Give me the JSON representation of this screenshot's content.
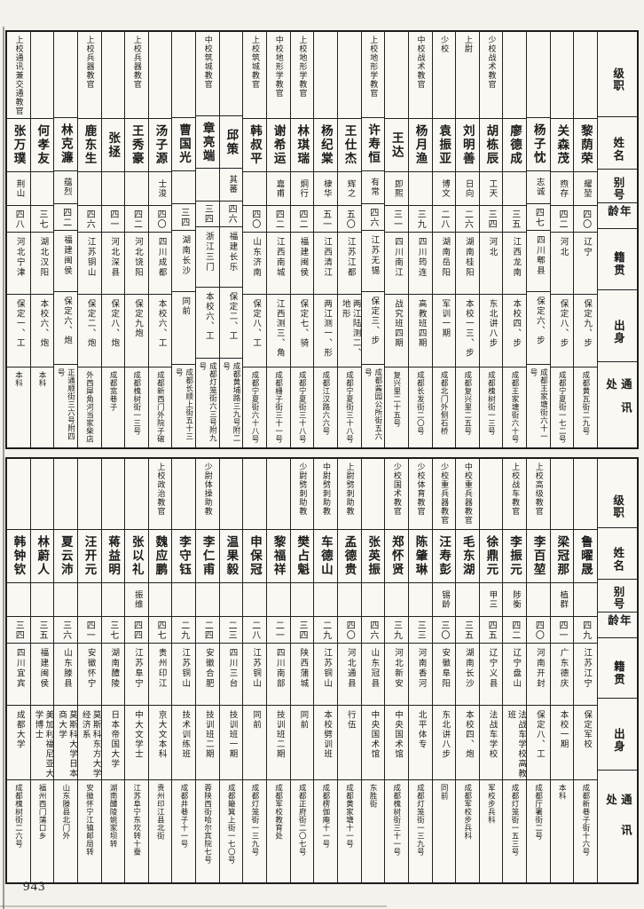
{
  "page_number": "943",
  "header_labels": {
    "rank": "级职",
    "name": "姓名",
    "alias": "别号",
    "age": "年龄",
    "native": "籍贯",
    "origin": "出身",
    "address": "通讯处"
  },
  "tables": [
    {
      "people": [
        {
          "rank": "",
          "name": "黎荫荣",
          "alias": "耀堃",
          "age": "四〇",
          "native": "辽宁",
          "origin": "保定九、步",
          "address": "成都黄瓦街二九号"
        },
        {
          "rank": "",
          "name": "关森茂",
          "alias": "煦存",
          "age": "四二",
          "native": "河北",
          "origin": "保定八、步",
          "address": "成都宁夏街一七二号"
        },
        {
          "rank": "",
          "name": "杨子忱",
          "alias": "志诚",
          "age": "四七",
          "native": "四川郫县",
          "origin": "保定六、步",
          "address": "成都王家塘街六十一号"
        },
        {
          "rank": "",
          "name": "廖德成",
          "alias": "",
          "age": "三五",
          "native": "江西龙南",
          "origin": "本校四、步",
          "address": "成都王家塘街六十号"
        },
        {
          "rank": "少校战术教官",
          "name": "胡栋辰",
          "alias": "工天",
          "age": "三四",
          "native": "河北",
          "origin": "东北讲八步",
          "address": "成都槐树街一三号"
        },
        {
          "rank": "上尉",
          "name": "刘明善",
          "alias": "日向",
          "age": "二六",
          "native": "湖南桂阳",
          "origin": "本校一三、步",
          "address": "成都复兴里二五号"
        },
        {
          "rank": "少校",
          "name": "袁振亚",
          "alias": "博文",
          "age": "二八",
          "native": "湖南岳阳",
          "origin": "军训一期",
          "address": "成都北门外侧石桥"
        },
        {
          "rank": "中校战术教官",
          "name": "杨月渔",
          "alias": "",
          "age": "三九",
          "native": "四川筠连",
          "origin": "高教班四期",
          "address": "成都长发街二〇号"
        },
        {
          "rank": "",
          "name": "王达",
          "alias": "即熙",
          "age": "三一",
          "native": "四川南江",
          "origin": "战究班四期",
          "address": "复兴里二十五号"
        },
        {
          "rank": "上校地形学教官",
          "name": "许寿恒",
          "alias": "有常",
          "age": "四六",
          "native": "江苏无锡",
          "origin": "保定三、步",
          "address": "成都酱园公所街五六号"
        },
        {
          "rank": "",
          "name": "王仕杰",
          "alias": "辉之",
          "age": "五〇",
          "native": "江苏江都",
          "origin": "两江陆测二、地形",
          "address": "成都宁夏街三十八号"
        },
        {
          "rank": "",
          "name": "杨纪棠",
          "alias": "棣华",
          "age": "五一",
          "native": "江西清江",
          "origin": "两江测一、形",
          "address": "成都江汉路六六号"
        },
        {
          "rank": "上校地形学教官",
          "name": "林琪瑞",
          "alias": "炯行",
          "age": "四二",
          "native": "福建闽侯",
          "origin": "保定七、骑",
          "address": "成都宁夏街三十八号"
        },
        {
          "rank": "中校地形学教官",
          "name": "谢希运",
          "alias": "嘉甫",
          "age": "四二",
          "native": "江西南城",
          "origin": "江西测三、角",
          "address": "成都栅子街三十一号"
        },
        {
          "rank": "上校筑城教官",
          "name": "韩叔平",
          "alias": "",
          "age": "四〇",
          "native": "山东济南",
          "origin": "保定八、工",
          "address": "成都宁夏街六十八号"
        },
        {
          "rank": "",
          "name": "邱策",
          "alias": "其蕃",
          "age": "四六",
          "native": "福建长乐",
          "origin": "保定二、工",
          "address": "成都黄埔路三九号附二号"
        },
        {
          "rank": "中校筑城教官",
          "name": "章亮端",
          "alias": "",
          "age": "三四",
          "native": "浙江三门",
          "origin": "本校六、工",
          "address": "成都灯笼街六三号附九号"
        },
        {
          "rank": "",
          "name": "曹国光",
          "alias": "",
          "age": "三四",
          "native": "湖南长沙",
          "origin": "同前",
          "address": "成都长顺上街五十三号"
        },
        {
          "rank": "",
          "name": "汤子源",
          "alias": "士浚",
          "age": "四〇",
          "native": "四川成都",
          "origin": "本校六、工",
          "address": "成都新西门外院子磙"
        },
        {
          "rank": "上校兵器教官",
          "name": "王秀豪",
          "alias": "",
          "age": "四二",
          "native": "河北饶阳",
          "origin": "保定九炮",
          "address": "成都槐树街一三号"
        },
        {
          "rank": "",
          "name": "张拯",
          "alias": "",
          "age": "四一",
          "native": "河北深县",
          "origin": "保定八、炮",
          "address": "成都宽巷子"
        },
        {
          "rank": "上校兵器教官",
          "name": "鹿东生",
          "alias": "",
          "age": "四六",
          "native": "江苏铜山",
          "origin": "保定二、炮",
          "address": "外西犀角河当家柴店"
        },
        {
          "rank": "",
          "name": "林克濂",
          "alias": "蕴烈",
          "age": "四二",
          "native": "福建闽侯",
          "origin": "保定六、炮",
          "address": "正通顺街三六号附四号"
        },
        {
          "rank": "",
          "name": "何孝友",
          "alias": "",
          "age": "三七",
          "native": "湖北汉阳",
          "origin": "本校六、炮",
          "address": "本科"
        },
        {
          "rank": "上校通讯兼交通教官",
          "name": "张万璞",
          "alias": "荆山",
          "age": "四八",
          "native": "河北宁津",
          "origin": "保定一、工",
          "address": "本科"
        }
      ]
    },
    {
      "people": [
        {
          "rank": "",
          "name": "鲁曜晟",
          "alias": "",
          "age": "四九",
          "native": "江苏江宁",
          "origin": "保定军校",
          "address": "成都新巷子街十六号"
        },
        {
          "rank": "",
          "name": "梁冠那",
          "alias": "植群",
          "age": "四一",
          "native": "广东德庆",
          "origin": "本校一期",
          "address": "本科"
        },
        {
          "rank": "上校高级教官",
          "name": "李百堃",
          "alias": "",
          "age": "四〇",
          "native": "河南开封",
          "origin": "保定八、工",
          "address": "成都厅署街二号"
        },
        {
          "rank": "上校战车教官",
          "name": "李振元",
          "alias": "陟衡",
          "age": "四二",
          "native": "辽宁盘山",
          "origin": "法战车学校高教班",
          "address": "成都灯笼街一五三号"
        },
        {
          "rank": "",
          "name": "徐鼎元",
          "alias": "甲三",
          "age": "四五",
          "native": "辽宁义县",
          "origin": "法战车学校",
          "address": "军校步兵科"
        },
        {
          "rank": "中校重兵器教官",
          "name": "毛东湖",
          "alias": "",
          "age": "三五",
          "native": "湖南长沙",
          "origin": "本校四、炮",
          "address": "成都军校步兵科"
        },
        {
          "rank": "少校重兵器教官",
          "name": "汪寿彭",
          "alias": "锡龄",
          "age": "三〇",
          "native": "安徽阜阳",
          "origin": "东北讲八步",
          "address": "同前"
        },
        {
          "rank": "少校体育教官",
          "name": "陈肇琳",
          "alias": "",
          "age": "三三",
          "native": "河南香河",
          "origin": "北平体专",
          "address": "成都灯笼街一三九号"
        },
        {
          "rank": "少校国术教官",
          "name": "郑怀贤",
          "alias": "",
          "age": "三九",
          "native": "河北新安",
          "origin": "中央国术馆",
          "address": "成都槐树街三十一号"
        },
        {
          "rank": "",
          "name": "张英振",
          "alias": "",
          "age": "四六",
          "native": "山东冠县",
          "origin": "中央国术馆",
          "address": "东胜街"
        },
        {
          "rank": "上尉劈刺助教",
          "name": "孟德贵",
          "alias": "",
          "age": "四〇",
          "native": "河北通县",
          "origin": "行伍",
          "address": "成都黄家塘十一号"
        },
        {
          "rank": "中尉劈刺助教",
          "name": "车德山",
          "alias": "",
          "age": "二九",
          "native": "江苏铜山",
          "origin": "本校劈训班",
          "address": "成都楞伽庵十一号"
        },
        {
          "rank": "少尉劈刺助教",
          "name": "樊占魁",
          "alias": "",
          "age": "三四",
          "native": "陕西蒲城",
          "origin": "同前",
          "address": "成都正府街二〇七号"
        },
        {
          "rank": "",
          "name": "黎福祥",
          "alias": "",
          "age": "二一",
          "native": "四川南部",
          "origin": "技训班二期",
          "address": "成都军校教育处"
        },
        {
          "rank": "",
          "name": "申保冠",
          "alias": "",
          "age": "二八",
          "native": "江苏铜山",
          "origin": "同前",
          "address": "成都灯笼街一三九号"
        },
        {
          "rank": "",
          "name": "温果毅",
          "alias": "",
          "age": "二三",
          "native": "四川三台",
          "origin": "技训班一期",
          "address": "成都簸箕上街一七〇号"
        },
        {
          "rank": "少尉体操助教",
          "name": "李仁甫",
          "alias": "",
          "age": "二四",
          "native": "安徽合肥",
          "origin": "技训班二期",
          "address": "蓉陕西街哈尔宾院七号"
        },
        {
          "rank": "",
          "name": "李守钰",
          "alias": "",
          "age": "二九",
          "native": "江苏铜山",
          "origin": "技术训练班",
          "address": "成都井巷子十一号"
        },
        {
          "rank": "上校政治教官",
          "name": "魏应鹏",
          "alias": "",
          "age": "四七",
          "native": "贵州印江",
          "origin": "京大文本科",
          "address": "贵州印江县北街"
        },
        {
          "rank": "",
          "name": "张以礼",
          "alias": "振维",
          "age": "四四",
          "native": "江苏阜宁",
          "origin": "中大文学士",
          "address": "江苏阜宁东坎转十蚕"
        },
        {
          "rank": "",
          "name": "蒋益明",
          "alias": "",
          "age": "三七",
          "native": "湖南醴陵",
          "origin": "日本帝国大学",
          "address": "湖南醴陵姚家坝转"
        },
        {
          "rank": "",
          "name": "汪开元",
          "alias": "",
          "age": "四一",
          "native": "安徽怀宁",
          "origin": "莫斯科东方大学经济系",
          "address": "安徽怀宁江镇邮局转"
        },
        {
          "rank": "",
          "name": "夏云沛",
          "alias": "",
          "age": "三六",
          "native": "山东滕县",
          "origin": "莫斯科大学日本商大学",
          "address": "山东滕县北门外"
        },
        {
          "rank": "",
          "name": "林蔚人",
          "alias": "",
          "age": "三五",
          "native": "福建闽侯",
          "origin": "美加利福尼亚大学博士",
          "address": "福州西门蒲口乡"
        },
        {
          "rank": "",
          "name": "韩钟钦",
          "alias": "",
          "age": "三四",
          "native": "四川宜宾",
          "origin": "成都大学",
          "address": "成都槐树街二六号"
        }
      ]
    }
  ]
}
